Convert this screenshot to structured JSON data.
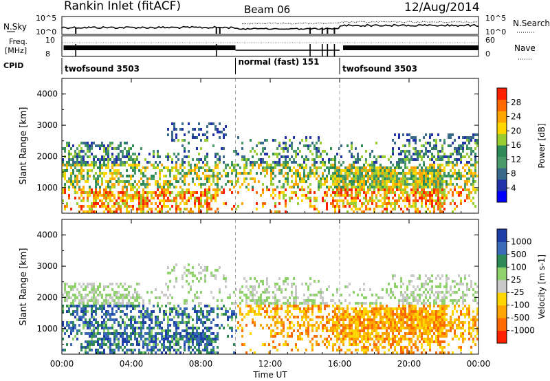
{
  "header": {
    "station": "Rankin Inlet (fitACF)",
    "beam": "Beam 06",
    "date": "12/Aug/2014"
  },
  "top_panels": {
    "nsky_label": "N.Sky",
    "nsky_ticks": [
      "10^5",
      "10^0"
    ],
    "nsearch_label": "N.Search",
    "nsearch_ticks": [
      "10^5",
      "10^0"
    ],
    "freq_label_1": "Freq.",
    "freq_label_2": "[MHz]",
    "freq_ticks": [
      "10",
      "8"
    ],
    "nave_label": "Nave",
    "nave_ticks": [
      "60",
      "0"
    ],
    "cpid_label": "CPID",
    "cpid_segments": [
      {
        "name": "twofsound 3503",
        "start_hour": 0,
        "end_hour": 10
      },
      {
        "name": "normal (fast) 151",
        "start_hour": 10,
        "end_hour": 16
      },
      {
        "name": "twofsound 3503",
        "start_hour": 16,
        "end_hour": 24
      }
    ]
  },
  "chart_data": [
    {
      "type": "heatmap",
      "title": "Power",
      "xlabel": "Time UT",
      "ylabel": "Slant Range [km]",
      "x_ticks": [
        "00:00",
        "04:00",
        "08:00",
        "12:00",
        "16:00",
        "20:00",
        "00:00"
      ],
      "xlim_hours": [
        0,
        24
      ],
      "ylim_km": [
        180,
        4500
      ],
      "y_ticks": [
        "1000",
        "2000",
        "3000",
        "4000"
      ],
      "colorbar": {
        "label": "Power [dB]",
        "ticks": [
          "4",
          "8",
          "12",
          "16",
          "20",
          "24",
          "28"
        ],
        "range": [
          0,
          30
        ],
        "colors": [
          "#0000ff",
          "#2233aa",
          "#3a6a8a",
          "#4a9a6a",
          "#2e8b57",
          "#9acd32",
          "#ffd700",
          "#ffa500",
          "#ff6a00",
          "#ff2000"
        ]
      }
    },
    {
      "type": "heatmap",
      "title": "Velocity",
      "xlabel": "Time UT",
      "ylabel": "Slant Range [km]",
      "x_ticks": [
        "00:00",
        "04:00",
        "08:00",
        "12:00",
        "16:00",
        "20:00",
        "00:00"
      ],
      "xlim_hours": [
        0,
        24
      ],
      "ylim_km": [
        180,
        4500
      ],
      "y_ticks": [
        "1000",
        "2000",
        "3000",
        "4000"
      ],
      "colorbar": {
        "label": "Velocity [m s-1]",
        "ticks": [
          "1000",
          "500",
          "100",
          "25",
          "-25",
          "-100",
          "-500",
          "-1000"
        ],
        "range": [
          -1200,
          1200
        ],
        "colors": [
          "#1f3fa8",
          "#3a6ab8",
          "#2e8b57",
          "#8fd16a",
          "#c8c8c8",
          "#ffd700",
          "#ffa500",
          "#ff6a00",
          "#ff2000"
        ]
      }
    }
  ]
}
